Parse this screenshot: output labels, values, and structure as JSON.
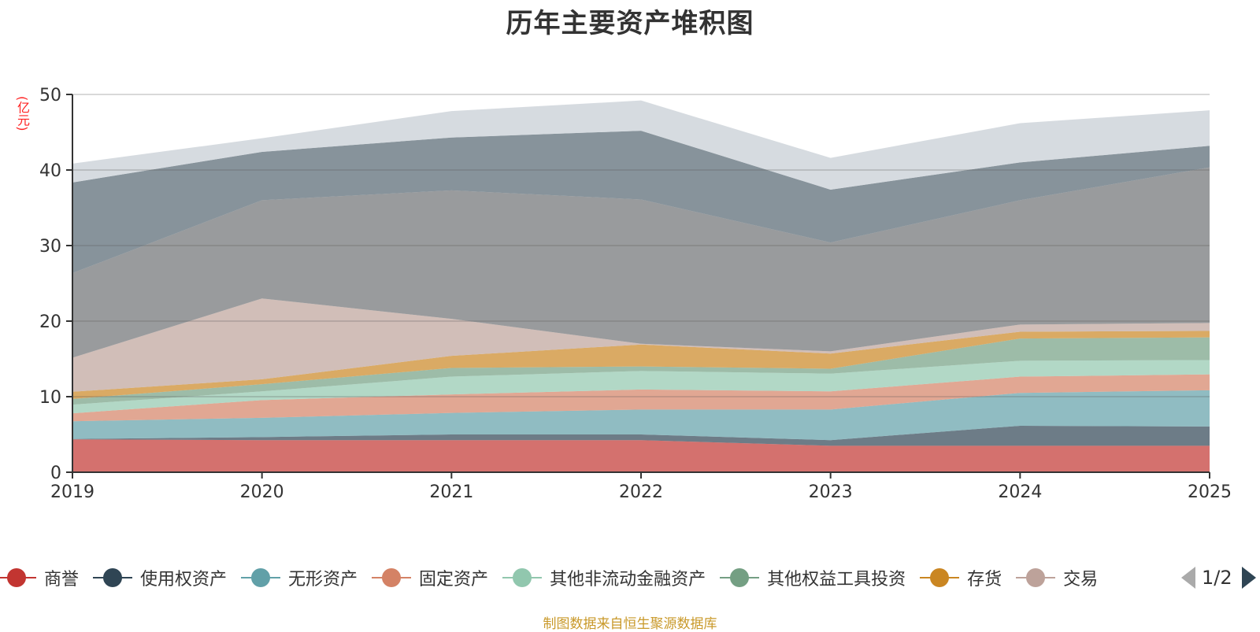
{
  "chart_data": {
    "type": "area",
    "stacked": true,
    "title": "历年主要资产堆积图",
    "ylabel": "(亿元)",
    "xlabel": "",
    "categories": [
      "2019",
      "2020",
      "2021",
      "2022",
      "2023",
      "2024",
      "2025"
    ],
    "ylim": [
      0,
      50
    ],
    "yticks": [
      0,
      10,
      20,
      30,
      40,
      50
    ],
    "grid": true,
    "legend_position": "bottom",
    "series": [
      {
        "name": "商誉",
        "color": "#c23531",
        "values": [
          4.35,
          4.25,
          4.25,
          4.25,
          3.5,
          3.5,
          3.5
        ]
      },
      {
        "name": "使用权资产",
        "color": "#2f4554",
        "values": [
          0.05,
          0.4,
          0.75,
          0.75,
          0.75,
          2.65,
          2.55
        ]
      },
      {
        "name": "无形资产",
        "color": "#61a0a8",
        "values": [
          2.35,
          2.55,
          2.85,
          3.3,
          4.05,
          4.35,
          4.8
        ]
      },
      {
        "name": "固定资产",
        "color": "#d48265",
        "values": [
          1.05,
          2.35,
          2.45,
          2.65,
          2.4,
          2.15,
          2.1
        ]
      },
      {
        "name": "其他非流动金融资产",
        "color": "#91c7ae",
        "values": [
          1.15,
          1.15,
          2.35,
          2.45,
          2.35,
          2.1,
          1.9
        ]
      },
      {
        "name": "其他权益工具投资",
        "color": "#749f83",
        "values": [
          0.75,
          0.95,
          1.15,
          0.6,
          0.65,
          2.95,
          3.0
        ]
      },
      {
        "name": "存货",
        "color": "#ca8622",
        "values": [
          0.95,
          0.65,
          1.6,
          2.9,
          2.0,
          0.9,
          0.85
        ]
      },
      {
        "name": "交易",
        "color": "#bda29a",
        "values": [
          4.5,
          10.7,
          4.9,
          0.1,
          0.3,
          0.95,
          1.05
        ]
      },
      {
        "name": "",
        "color": "#6e7074",
        "values": [
          11.2,
          13.0,
          17.0,
          19.1,
          14.4,
          16.45,
          20.6
        ]
      },
      {
        "name": "",
        "color": "#546570",
        "values": [
          12.0,
          6.4,
          7.0,
          9.1,
          7.0,
          5.0,
          2.85
        ]
      },
      {
        "name": "",
        "color": "#c4ccd3",
        "values": [
          2.5,
          1.8,
          3.5,
          4.0,
          4.2,
          5.2,
          4.7
        ]
      }
    ]
  },
  "legend": {
    "items": [
      {
        "label": "商誉",
        "color": "#c23531"
      },
      {
        "label": "使用权资产",
        "color": "#2f4554"
      },
      {
        "label": "无形资产",
        "color": "#61a0a8"
      },
      {
        "label": "固定资产",
        "color": "#d48265"
      },
      {
        "label": "其他非流动金融资产",
        "color": "#91c7ae"
      },
      {
        "label": "其他权益工具投资",
        "color": "#749f83"
      },
      {
        "label": "存货",
        "color": "#ca8622"
      },
      {
        "label": "交易",
        "color": "#bda29a"
      }
    ],
    "page_indicator": "1/2"
  },
  "footer": "制图数据来自恒生聚源数据库"
}
